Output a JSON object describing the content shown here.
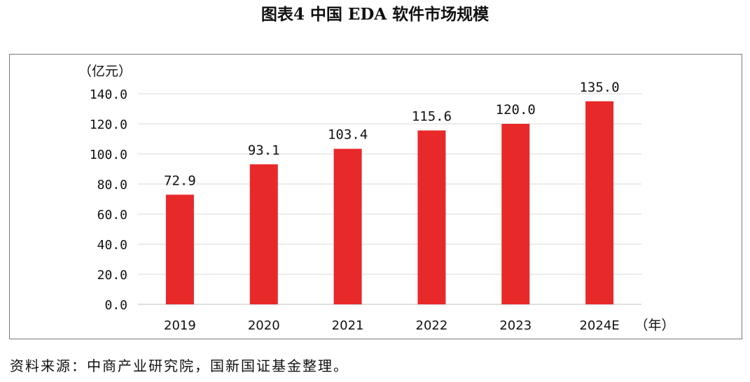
{
  "title": "图表4 中国 EDA 软件市场规模",
  "source": "资料来源：中商产业研究院，国新国证基金整理。",
  "colors": {
    "bar": "#e8292a",
    "grid": "#d9d9d9",
    "axis": "#bfbfbf"
  },
  "chart_data": {
    "type": "bar",
    "title": "",
    "ylabel": "（亿元）",
    "xlabel": "（年）",
    "categories": [
      "2019",
      "2020",
      "2021",
      "2022",
      "2023",
      "2024E"
    ],
    "values": [
      72.9,
      93.1,
      103.4,
      115.6,
      120.0,
      135.0
    ],
    "value_labels": [
      "72.9",
      "93.1",
      "103.4",
      "115.6",
      "120.0",
      "135.0"
    ],
    "ylim": [
      0,
      140
    ],
    "yticks": [
      0,
      20,
      40,
      60,
      80,
      100,
      120,
      140
    ],
    "ytick_labels": [
      "0.0",
      "20.0",
      "40.0",
      "60.0",
      "80.0",
      "100.0",
      "120.0",
      "140.0"
    ],
    "grid": true,
    "legend": "none"
  }
}
